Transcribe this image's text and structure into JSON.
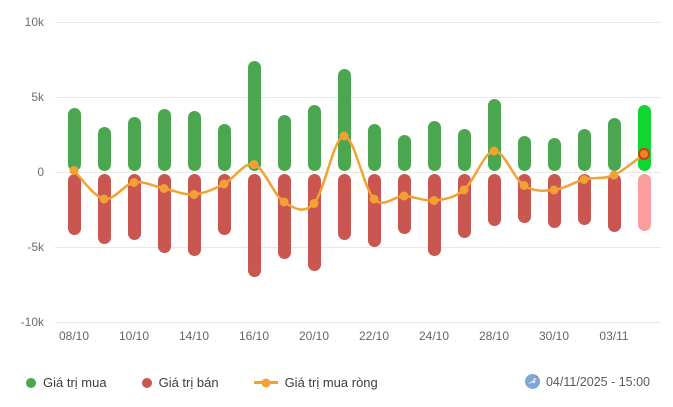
{
  "chart_data": {
    "type": "bar",
    "subtype": "combo-bar-line",
    "title": "",
    "xlabel": "",
    "ylabel": "",
    "ylim": [
      -10000,
      10000
    ],
    "grid": "horizontal",
    "legend_position": "bottom-left",
    "y_ticks": [
      {
        "label": "10k",
        "value": 10000
      },
      {
        "label": "5k",
        "value": 5000
      },
      {
        "label": "0",
        "value": 0
      },
      {
        "label": "-5k",
        "value": -5000
      },
      {
        "label": "-10k",
        "value": -10000
      }
    ],
    "x_tick_labels": [
      "08/10",
      "10/10",
      "14/10",
      "16/10",
      "20/10",
      "22/10",
      "24/10",
      "28/10",
      "30/10",
      "03/11"
    ],
    "x_ticks_note": "one label under every second bar, starting at the first bar",
    "bar_count": 20,
    "series": [
      {
        "name": "Giá trị mua",
        "type": "bar",
        "color": "#4BA74F",
        "values": [
          4300,
          3000,
          3700,
          4200,
          4100,
          3200,
          7400,
          3800,
          4500,
          6900,
          3200,
          2500,
          3400,
          2900,
          4900,
          2400,
          2300,
          2900,
          3600,
          4500
        ]
      },
      {
        "name": "Giá trị bán",
        "type": "bar",
        "color": "#C95650",
        "values": [
          -4200,
          -4800,
          -4500,
          -5400,
          -5600,
          -4200,
          -7000,
          -5800,
          -6600,
          -4500,
          -5000,
          -4100,
          -5600,
          -4400,
          -3600,
          -3400,
          -3700,
          -3500,
          -4000,
          -3900
        ]
      },
      {
        "name": "Giá trị mua ròng",
        "type": "line",
        "color": "#F2A134",
        "values": [
          100,
          -1800,
          -700,
          -1100,
          -1500,
          -800,
          500,
          -2000,
          -2100,
          2400,
          -1800,
          -1600,
          -1900,
          -1200,
          1400,
          -900,
          -1200,
          -500,
          -200,
          1200
        ]
      }
    ],
    "last_point_highlight": {
      "buy_color": "#10D62F",
      "sell_color": "#FB9D9D",
      "marker_fill": "#F58220",
      "marker_stroke": "#C8401E"
    }
  },
  "footer": {
    "timestamp": "04/11/2025 - 15:00",
    "logo_icon": "site-logo-icon",
    "logo_color": "#7FA8D9"
  }
}
